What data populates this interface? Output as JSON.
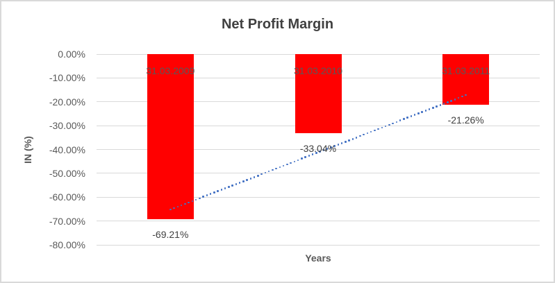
{
  "chart_data": {
    "type": "bar",
    "title": "Net Profit Margin",
    "xlabel": "Years",
    "ylabel": "IN (%)",
    "categories": [
      "31.03.2009",
      "31.03.2010",
      "31.03.2011"
    ],
    "values": [
      -69.21,
      -33.04,
      -21.26
    ],
    "data_labels": [
      "-69.21%",
      "-33.04%",
      "-21.26%"
    ],
    "unit": "%",
    "ylim": [
      -80,
      0
    ],
    "ytick_step": 10,
    "ytick_labels": [
      "0.00%",
      "-10.00%",
      "-20.00%",
      "-30.00%",
      "-40.00%",
      "-50.00%",
      "-60.00%",
      "-70.00%",
      "-80.00%"
    ],
    "grid": true,
    "legend": "none",
    "bar_color": "#FF0000",
    "trendline": {
      "type": "linear",
      "style": "dotted",
      "color": "#4472C4",
      "y_start": -65.2,
      "y_end": -17.2
    }
  },
  "colors": {
    "title_text": "#404040",
    "axis_text": "#595959",
    "data_label_text": "#404040",
    "gridline": "#D9D9D9",
    "border": "#D9D9D9",
    "background": "#FFFFFF"
  }
}
